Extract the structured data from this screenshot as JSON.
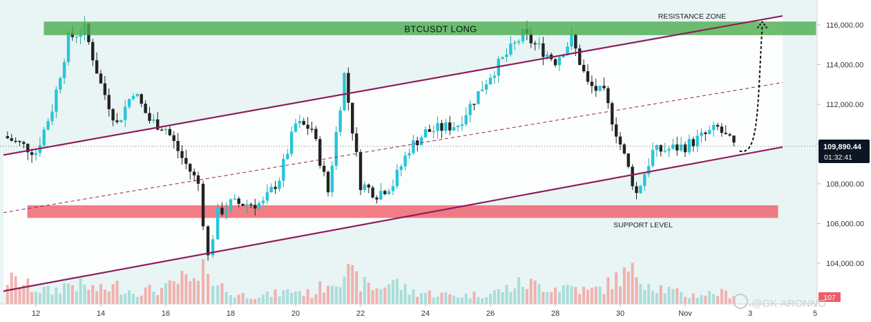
{
  "chart_data": {
    "type": "candlestick",
    "title": "BTCUSDT LONG",
    "y_axis": {
      "ylim": [
        102400,
        117000
      ],
      "tick_labels": [
        "104,000.00",
        "106,000.00",
        "108,000.00",
        "110,000.00",
        "112,000.00",
        "114,000.00",
        "116,000.00"
      ],
      "tick_values": [
        104000,
        106000,
        108000,
        110000,
        112000,
        114000,
        116000
      ]
    },
    "x_axis": {
      "tick_labels": [
        "12",
        "14",
        "16",
        "18",
        "20",
        "22",
        "24",
        "26",
        "28",
        "30",
        "Nov",
        "3",
        "5"
      ]
    },
    "current_price": {
      "value": 109890.44,
      "label": "109,890.44",
      "countdown": "01:32:41",
      "color": "#0b1523"
    },
    "resistance_zone": {
      "label": "RESISTANCE ZONE",
      "from": 115500,
      "to": 116150,
      "color": "#4cae4f"
    },
    "support_level": {
      "label": "SUPPORT LEVEL",
      "from": 106300,
      "to": 106900,
      "color": "#f05d68"
    },
    "channel": {
      "color": "#8e1d5a",
      "upper_line": [
        {
          "x": "Oct 11",
          "y": 109450
        },
        {
          "x": "Nov 4",
          "y": 116450
        }
      ],
      "mid_line": [
        {
          "x": "Oct 11",
          "y": 106550
        },
        {
          "x": "Nov 4",
          "y": 113100
        }
      ],
      "lower_line": [
        {
          "x": "Oct 11",
          "y": 102600
        },
        {
          "x": "Nov 4",
          "y": 109850
        }
      ]
    },
    "projection": {
      "style": "dashed curve with arrow",
      "from": 109650,
      "to": 116150
    },
    "volume_tag": "107",
    "series": [
      {
        "x": "Oct 11",
        "close": 110400,
        "volume": 38
      },
      {
        "x": "Oct 12",
        "close": 109600,
        "volume": 22
      },
      {
        "x": "Oct 12.5",
        "close": 111800,
        "volume": 18
      },
      {
        "x": "Oct 13",
        "close": 115300,
        "volume": 30
      },
      {
        "x": "Oct 13.5",
        "close": 115800,
        "volume": 25
      },
      {
        "x": "Oct 14",
        "close": 113000,
        "volume": 20
      },
      {
        "x": "Oct 14.5",
        "close": 111000,
        "volume": 26
      },
      {
        "x": "Oct 15",
        "close": 112700,
        "volume": 18
      },
      {
        "x": "Oct 15.5",
        "close": 111200,
        "volume": 20
      },
      {
        "x": "Oct 16",
        "close": 110800,
        "volume": 22
      },
      {
        "x": "Oct 16.5",
        "close": 109300,
        "volume": 35
      },
      {
        "x": "Oct 17",
        "close": 108000,
        "volume": 28
      },
      {
        "x": "Oct 17.3",
        "close": 104300,
        "volume": 62
      },
      {
        "x": "Oct 17.6",
        "close": 106500,
        "volume": 30
      },
      {
        "x": "Oct 18",
        "close": 107000,
        "volume": 14
      },
      {
        "x": "Oct 19",
        "close": 107000,
        "volume": 12
      },
      {
        "x": "Oct 19.5",
        "close": 108300,
        "volume": 16
      },
      {
        "x": "Oct 20",
        "close": 111000,
        "volume": 20
      },
      {
        "x": "Oct 20.5",
        "close": 110800,
        "volume": 14
      },
      {
        "x": "Oct 21",
        "close": 107600,
        "volume": 32
      },
      {
        "x": "Oct 21.5",
        "close": 113500,
        "volume": 48
      },
      {
        "x": "Oct 22",
        "close": 108000,
        "volume": 30
      },
      {
        "x": "Oct 22.5",
        "close": 107500,
        "volume": 22
      },
      {
        "x": "Oct 23",
        "close": 108000,
        "volume": 34
      },
      {
        "x": "Oct 23.5",
        "close": 109800,
        "volume": 18
      },
      {
        "x": "Oct 24",
        "close": 110600,
        "volume": 16
      },
      {
        "x": "Oct 25",
        "close": 111000,
        "volume": 12
      },
      {
        "x": "Oct 26",
        "close": 113500,
        "volume": 15
      },
      {
        "x": "Oct 27",
        "close": 115500,
        "volume": 30
      },
      {
        "x": "Oct 28",
        "close": 114200,
        "volume": 24
      },
      {
        "x": "Oct 28.5",
        "close": 115300,
        "volume": 26
      },
      {
        "x": "Oct 29",
        "close": 113000,
        "volume": 18
      },
      {
        "x": "Oct 29.5",
        "close": 112500,
        "volume": 24
      },
      {
        "x": "Oct 30",
        "close": 110000,
        "volume": 40
      },
      {
        "x": "Oct 30.5",
        "close": 107500,
        "volume": 45
      },
      {
        "x": "Oct 31",
        "close": 109600,
        "volume": 28
      },
      {
        "x": "Nov 1",
        "close": 109900,
        "volume": 12
      },
      {
        "x": "Nov 2",
        "close": 110800,
        "volume": 16
      },
      {
        "x": "Nov 2.5",
        "close": 109890,
        "volume": 14
      }
    ]
  },
  "watermark": "@GK-ARONNO"
}
